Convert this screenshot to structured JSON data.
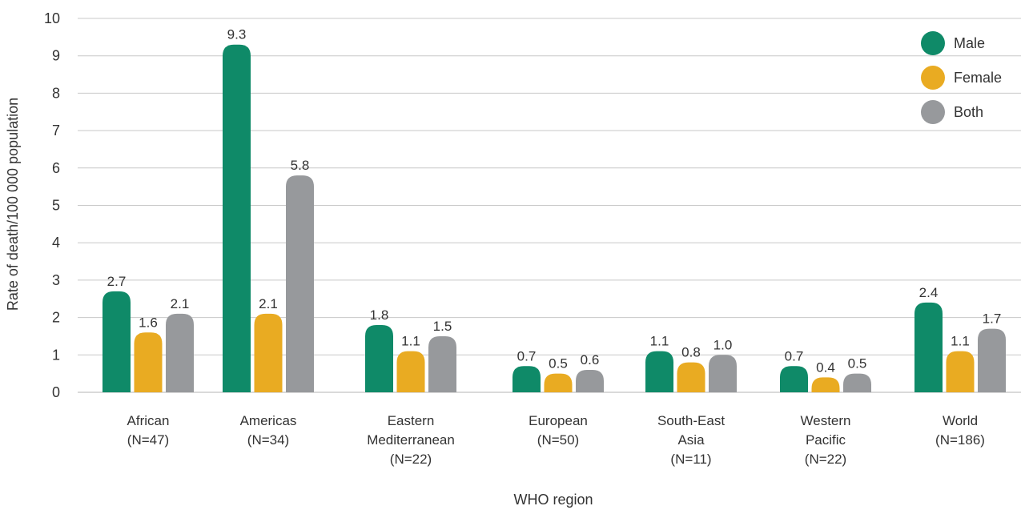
{
  "chart_data": {
    "type": "bar",
    "categories": [
      [
        "African",
        "(N=47)"
      ],
      [
        "Americas",
        "(N=34)"
      ],
      [
        "Eastern",
        "Mediterranean",
        "(N=22)"
      ],
      [
        "European",
        "(N=50)"
      ],
      [
        "South-East",
        "Asia",
        "(N=11)"
      ],
      [
        "Western",
        "Pacific",
        "(N=22)"
      ],
      [
        "World",
        "(N=186)"
      ]
    ],
    "series": [
      {
        "name": "Male",
        "color": "#0f8a68",
        "values": [
          2.7,
          9.3,
          1.8,
          0.7,
          1.1,
          0.7,
          2.4
        ]
      },
      {
        "name": "Female",
        "color": "#e9ab22",
        "values": [
          1.6,
          2.1,
          1.1,
          0.5,
          0.8,
          0.4,
          1.1
        ]
      },
      {
        "name": "Both",
        "color": "#97999c",
        "values": [
          2.1,
          5.8,
          1.5,
          0.6,
          1.0,
          0.5,
          1.7
        ]
      }
    ],
    "value_labels": [
      [
        "2.7",
        "9.3",
        "1.8",
        "0.7",
        "1.1",
        "0.7",
        "2.4"
      ],
      [
        "1.6",
        "2.1",
        "1.1",
        "0.5",
        "0.8",
        "0.4",
        "1.1"
      ],
      [
        "2.1",
        "5.8",
        "1.5",
        "0.6",
        "1.0",
        "0.5",
        "1.7"
      ]
    ],
    "yticks": [
      "0",
      "1",
      "2",
      "3",
      "4",
      "5",
      "6",
      "7",
      "8",
      "9",
      "10"
    ],
    "ylim": [
      0,
      10
    ],
    "xlabel": "WHO region",
    "ylabel": "Rate of death/100 000 population",
    "grid": true,
    "legend_position": "top-right"
  }
}
